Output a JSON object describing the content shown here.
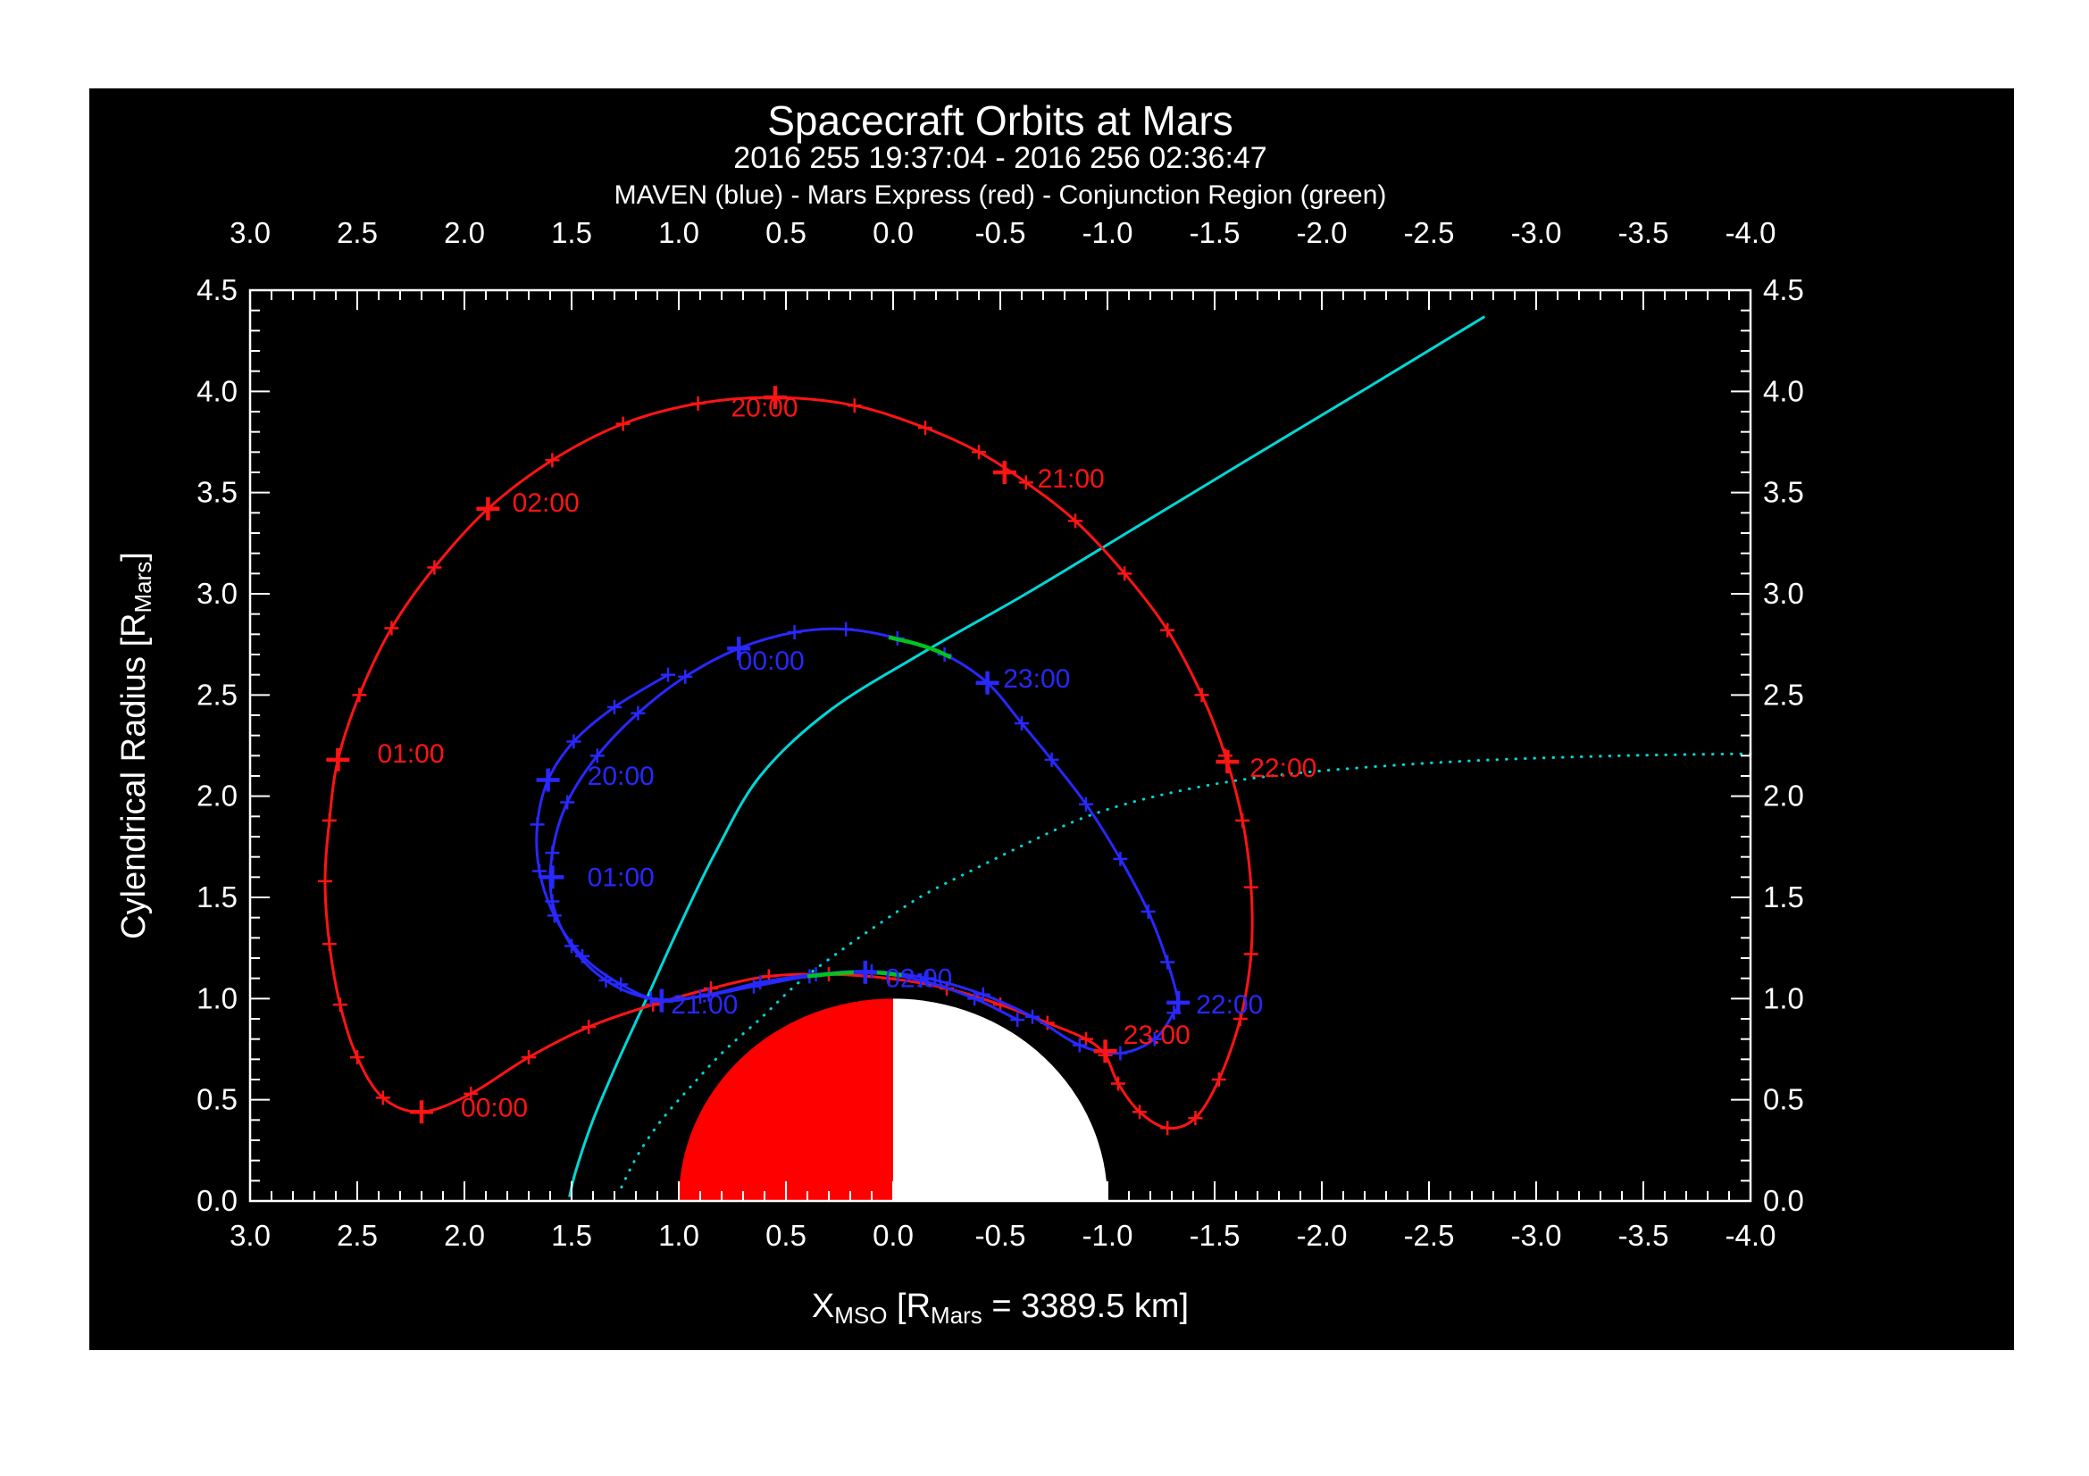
{
  "page": {
    "title": "Spacecraft Orbits at Mars",
    "subtitle": "2016 255 19:37:04 - 2016 256 02:36:47",
    "legend": "MAVEN (blue) - Mars Express (red) - Conjunction Region (green)"
  },
  "axes": {
    "x_title": {
      "base": "X",
      "base_sub": "MSO",
      "bracket": " [R",
      "bracket_sub": "Mars",
      "tail": " = 3389.5 km]"
    },
    "y_title": {
      "base": "Cylendrical Radius [R",
      "sub": "Mars",
      "tail": "]"
    }
  },
  "chart_data": {
    "type": "line",
    "title": "Spacecraft Orbits at Mars",
    "subtitle": "2016 255 19:37:04 - 2016 256 02:36:47",
    "legend_line": "MAVEN (blue) - Mars Express (red) - Conjunction Region (green)",
    "xlabel": "X_MSO [R_Mars = 3389.5 km]",
    "ylabel": "Cylendrical Radius [R_Mars]",
    "x_range": [
      3.0,
      -4.0
    ],
    "y_range": [
      0.0,
      4.5
    ],
    "x_ticks": [
      3.0,
      2.5,
      2.0,
      1.5,
      1.0,
      0.5,
      0.0,
      -0.5,
      -1.0,
      -1.5,
      -2.0,
      -2.5,
      -3.0,
      -3.5,
      -4.0
    ],
    "y_ticks": [
      0.0,
      0.5,
      1.0,
      1.5,
      2.0,
      2.5,
      3.0,
      3.5,
      4.0,
      4.5
    ],
    "x_minor_step": 0.1,
    "y_minor_step": 0.1,
    "background": "#000000",
    "frame_color": "#ffffff",
    "mars": {
      "center_x": 0.0,
      "center_y": 0.0,
      "radius": 1.0,
      "plus_x_half_color": "#ff0000",
      "minus_x_half_color": "#ffffff"
    },
    "series": [
      {
        "name": "boundary_dotted",
        "color": "#00d8d8",
        "width": 3,
        "style": "dotted",
        "markers": false,
        "closed": false,
        "points": [
          [
            -4.0,
            2.21
          ],
          [
            -3.4,
            2.2
          ],
          [
            -2.8,
            2.18
          ],
          [
            -2.3,
            2.15
          ],
          [
            -1.85,
            2.11
          ],
          [
            -1.5,
            2.06
          ],
          [
            -1.15,
            1.98
          ],
          [
            -0.88,
            1.89
          ],
          [
            -0.65,
            1.78
          ],
          [
            -0.38,
            1.64
          ],
          [
            -0.14,
            1.51
          ],
          [
            0.05,
            1.38
          ],
          [
            0.24,
            1.24
          ],
          [
            0.44,
            1.08
          ],
          [
            0.62,
            0.9
          ],
          [
            0.79,
            0.74
          ],
          [
            0.94,
            0.57
          ],
          [
            1.08,
            0.4
          ],
          [
            1.19,
            0.23
          ],
          [
            1.28,
            0.04
          ]
        ]
      },
      {
        "name": "boundary_solid",
        "color": "#00d8d8",
        "width": 3,
        "style": "solid",
        "markers": false,
        "closed": false,
        "points": [
          [
            -2.76,
            4.37
          ],
          [
            -2.2,
            4.01
          ],
          [
            -1.65,
            3.66
          ],
          [
            -1.12,
            3.32
          ],
          [
            -0.62,
            3.0
          ],
          [
            -0.14,
            2.71
          ],
          [
            0.3,
            2.42
          ],
          [
            0.62,
            2.1
          ],
          [
            0.83,
            1.72
          ],
          [
            1.0,
            1.35
          ],
          [
            1.15,
            1.0
          ],
          [
            1.28,
            0.7
          ],
          [
            1.4,
            0.4
          ],
          [
            1.48,
            0.15
          ],
          [
            1.51,
            0.02
          ]
        ]
      },
      {
        "name": "mars_express_orbit",
        "color": "#ff1414",
        "width": 3,
        "style": "solid",
        "markers": true,
        "closed": true,
        "points": [
          [
            0.55,
            3.97
          ],
          [
            0.18,
            3.93
          ],
          [
            -0.15,
            3.82
          ],
          [
            -0.4,
            3.7
          ],
          [
            -0.62,
            3.55
          ],
          [
            -0.85,
            3.36
          ],
          [
            -1.08,
            3.1
          ],
          [
            -1.28,
            2.82
          ],
          [
            -1.44,
            2.5
          ],
          [
            -1.55,
            2.2
          ],
          [
            -1.63,
            1.88
          ],
          [
            -1.67,
            1.55
          ],
          [
            -1.67,
            1.22
          ],
          [
            -1.62,
            0.9
          ],
          [
            -1.52,
            0.6
          ],
          [
            -1.41,
            0.41
          ],
          [
            -1.28,
            0.36
          ],
          [
            -1.15,
            0.44
          ],
          [
            -1.05,
            0.58
          ],
          [
            -0.99,
            0.72
          ],
          [
            -0.9,
            0.8
          ],
          [
            -0.72,
            0.88
          ],
          [
            -0.5,
            0.97
          ],
          [
            -0.25,
            1.05
          ],
          [
            0.02,
            1.1
          ],
          [
            0.3,
            1.12
          ],
          [
            0.58,
            1.11
          ],
          [
            0.85,
            1.05
          ],
          [
            1.12,
            0.97
          ],
          [
            1.42,
            0.86
          ],
          [
            1.7,
            0.71
          ],
          [
            1.97,
            0.53
          ],
          [
            2.2,
            0.44
          ],
          [
            2.38,
            0.51
          ],
          [
            2.5,
            0.71
          ],
          [
            2.58,
            0.97
          ],
          [
            2.63,
            1.27
          ],
          [
            2.65,
            1.58
          ],
          [
            2.63,
            1.88
          ],
          [
            2.59,
            2.18
          ],
          [
            2.49,
            2.5
          ],
          [
            2.34,
            2.83
          ],
          [
            2.14,
            3.13
          ],
          [
            1.89,
            3.42
          ],
          [
            1.59,
            3.66
          ],
          [
            1.26,
            3.84
          ],
          [
            0.91,
            3.94
          ]
        ]
      },
      {
        "name": "maven_orbit",
        "color": "#2828ff",
        "width": 3,
        "style": "solid",
        "markers": true,
        "closed": false,
        "points": [
          [
            1.05,
            2.6
          ],
          [
            1.3,
            2.44
          ],
          [
            1.49,
            2.27
          ],
          [
            1.61,
            2.08
          ],
          [
            1.66,
            1.86
          ],
          [
            1.65,
            1.63
          ],
          [
            1.58,
            1.41
          ],
          [
            1.45,
            1.21
          ],
          [
            1.27,
            1.07
          ],
          [
            1.08,
            0.99
          ],
          [
            0.86,
            1.02
          ],
          [
            0.62,
            1.08
          ],
          [
            0.36,
            1.12
          ],
          [
            0.1,
            1.135
          ],
          [
            -0.16,
            1.1
          ],
          [
            -0.42,
            1.02
          ],
          [
            -0.65,
            0.91
          ],
          [
            -0.87,
            0.77
          ],
          [
            -1.06,
            0.73
          ],
          [
            -1.22,
            0.8
          ],
          [
            -1.31,
            0.93
          ],
          [
            -1.33,
            0.98
          ],
          [
            -1.28,
            1.18
          ],
          [
            -1.19,
            1.43
          ],
          [
            -1.06,
            1.69
          ],
          [
            -0.9,
            1.96
          ],
          [
            -0.74,
            2.18
          ],
          [
            -0.6,
            2.36
          ],
          [
            -0.44,
            2.56
          ],
          [
            -0.24,
            2.7
          ],
          [
            -0.02,
            2.78
          ],
          [
            0.22,
            2.825
          ],
          [
            0.46,
            2.81
          ],
          [
            0.72,
            2.73
          ],
          [
            0.97,
            2.59
          ],
          [
            1.19,
            2.41
          ],
          [
            1.38,
            2.2
          ],
          [
            1.52,
            1.97
          ],
          [
            1.59,
            1.72
          ],
          [
            1.59,
            1.48
          ],
          [
            1.5,
            1.26
          ],
          [
            1.34,
            1.09
          ],
          [
            1.13,
            1.0
          ],
          [
            0.9,
            1.01
          ],
          [
            0.65,
            1.06
          ],
          [
            0.39,
            1.11
          ],
          [
            0.13,
            1.13
          ],
          [
            -0.13,
            1.09
          ],
          [
            -0.38,
            1.0
          ],
          [
            -0.58,
            0.895
          ]
        ]
      },
      {
        "name": "conjunction_region_upper",
        "color": "#00c31e",
        "width": 4.5,
        "style": "solid",
        "markers": false,
        "closed": false,
        "points": [
          [
            0.02,
            2.785
          ],
          [
            -0.1,
            2.755
          ],
          [
            -0.2,
            2.72
          ],
          [
            -0.27,
            2.685
          ]
        ]
      },
      {
        "name": "conjunction_region_lower",
        "color": "#00c31e",
        "width": 4.5,
        "style": "solid",
        "markers": false,
        "closed": false,
        "points": [
          [
            0.4,
            1.11
          ],
          [
            0.25,
            1.125
          ],
          [
            0.1,
            1.13
          ],
          [
            -0.04,
            1.115
          ]
        ]
      }
    ],
    "time_labels": [
      {
        "text": "20:00",
        "color": "#ff1414",
        "mark": [
          0.55,
          3.97
        ],
        "label": [
          0.6,
          3.92
        ]
      },
      {
        "text": "21:00",
        "color": "#ff1414",
        "mark": [
          -0.52,
          3.6
        ],
        "label": [
          -0.83,
          3.57
        ]
      },
      {
        "text": "22:00",
        "color": "#ff1414",
        "mark": [
          -1.56,
          2.17
        ],
        "label": [
          -1.82,
          2.14
        ]
      },
      {
        "text": "23:00",
        "color": "#ff1414",
        "mark": [
          -0.99,
          0.74
        ],
        "label": [
          -1.23,
          0.82
        ]
      },
      {
        "text": "00:00",
        "color": "#ff1414",
        "mark": [
          2.2,
          0.44
        ],
        "label": [
          1.86,
          0.46
        ]
      },
      {
        "text": "01:00",
        "color": "#ff1414",
        "mark": [
          2.59,
          2.18
        ],
        "label": [
          2.25,
          2.21
        ]
      },
      {
        "text": "02:00",
        "color": "#ff1414",
        "mark": [
          1.89,
          3.42
        ],
        "label": [
          1.62,
          3.45
        ]
      },
      {
        "text": "20:00",
        "color": "#2828ff",
        "mark": [
          1.61,
          2.08
        ],
        "label": [
          1.27,
          2.1
        ]
      },
      {
        "text": "21:00",
        "color": "#2828ff",
        "mark": [
          1.08,
          0.99
        ],
        "label": [
          0.88,
          0.97
        ]
      },
      {
        "text": "22:00",
        "color": "#2828ff",
        "mark": [
          -1.33,
          0.98
        ],
        "label": [
          -1.57,
          0.97
        ]
      },
      {
        "text": "23:00",
        "color": "#2828ff",
        "mark": [
          -0.44,
          2.56
        ],
        "label": [
          -0.67,
          2.58
        ]
      },
      {
        "text": "00:00",
        "color": "#2828ff",
        "mark": [
          0.72,
          2.73
        ],
        "label": [
          0.57,
          2.67
        ]
      },
      {
        "text": "01:00",
        "color": "#2828ff",
        "mark": [
          1.59,
          1.6
        ],
        "label": [
          1.27,
          1.6
        ]
      },
      {
        "text": "02:00",
        "color": "#2828ff",
        "mark": [
          0.13,
          1.13
        ],
        "label": [
          -0.12,
          1.1
        ]
      }
    ]
  }
}
